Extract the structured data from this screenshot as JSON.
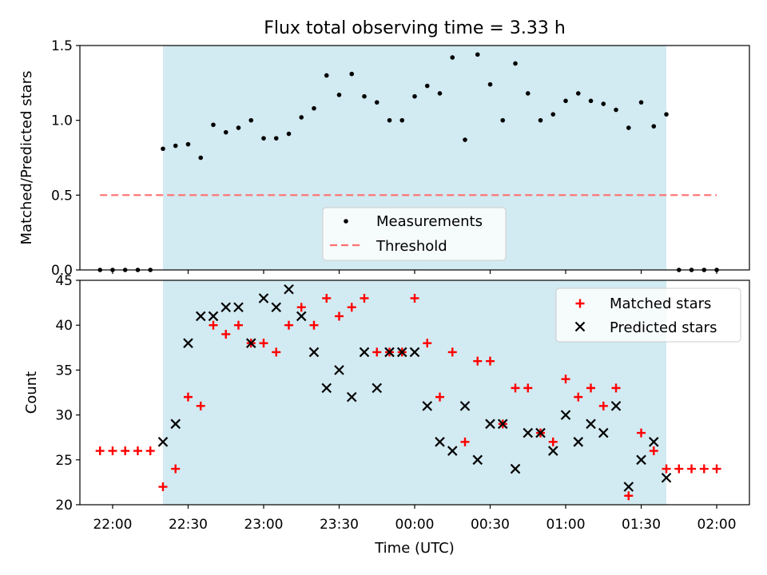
{
  "title": "Flux total observing time = 3.33 h",
  "colors": {
    "span": "#add8e6",
    "threshold": "#ff7070",
    "measure": "#000000",
    "matched": "#ff0000",
    "predicted": "#000000"
  },
  "chart_data": [
    {
      "type": "scatter",
      "title": "Flux total observing time = 3.33 h",
      "xlabel": "",
      "ylabel": "Matched/Predicted stars",
      "ylim": [
        0,
        1.5
      ],
      "yticks": [
        "0.0",
        "0.5",
        "1.0",
        "1.5"
      ],
      "xlim": [
        "21:47",
        "02:13"
      ],
      "observing_span": [
        "22:20",
        "01:40"
      ],
      "legend": {
        "placement": "lower-center",
        "entries": [
          "Measurements",
          "Threshold"
        ]
      },
      "threshold": {
        "name": "Threshold",
        "y": 0.5,
        "x_range": [
          "21:55",
          "02:00"
        ]
      },
      "series": [
        {
          "name": "Measurements",
          "x": [
            "21:55",
            "22:00",
            "22:05",
            "22:10",
            "22:15",
            "22:20",
            "22:25",
            "22:30",
            "22:35",
            "22:40",
            "22:45",
            "22:50",
            "22:55",
            "23:00",
            "23:05",
            "23:10",
            "23:15",
            "23:20",
            "23:25",
            "23:30",
            "23:35",
            "23:40",
            "23:45",
            "23:50",
            "23:55",
            "00:00",
            "00:05",
            "00:10",
            "00:15",
            "00:20",
            "00:25",
            "00:30",
            "00:35",
            "00:40",
            "00:45",
            "00:50",
            "00:55",
            "01:00",
            "01:05",
            "01:10",
            "01:15",
            "01:20",
            "01:25",
            "01:30",
            "01:35",
            "01:40",
            "01:45",
            "01:50",
            "01:55",
            "02:00"
          ],
          "y": [
            0,
            0,
            0,
            0,
            0,
            0.81,
            0.83,
            0.84,
            0.75,
            0.97,
            0.92,
            0.95,
            1.0,
            0.88,
            0.88,
            0.91,
            1.02,
            1.08,
            1.3,
            1.17,
            1.31,
            1.16,
            1.12,
            1.0,
            1.0,
            1.16,
            1.23,
            1.18,
            1.42,
            0.87,
            1.44,
            1.24,
            1.0,
            1.38,
            1.18,
            1.0,
            1.04,
            1.13,
            1.18,
            1.13,
            1.11,
            1.07,
            0.95,
            1.12,
            0.96,
            1.04,
            0,
            0,
            0,
            0
          ]
        }
      ]
    },
    {
      "type": "scatter",
      "xlabel": "Time (UTC)",
      "ylabel": "Count",
      "ylim": [
        20,
        45
      ],
      "yticks": [
        "20",
        "25",
        "30",
        "35",
        "40",
        "45"
      ],
      "xticks": [
        "22:00",
        "22:30",
        "23:00",
        "23:30",
        "00:00",
        "00:30",
        "01:00",
        "01:30",
        "02:00"
      ],
      "legend": {
        "placement": "top-right",
        "entries": [
          "Matched stars",
          "Predicted stars"
        ]
      },
      "series": [
        {
          "name": "Matched stars",
          "x": [
            "21:55",
            "22:00",
            "22:05",
            "22:10",
            "22:15",
            "22:20",
            "22:25",
            "22:30",
            "22:35",
            "22:40",
            "22:45",
            "22:50",
            "22:55",
            "23:00",
            "23:05",
            "23:10",
            "23:15",
            "23:20",
            "23:25",
            "23:30",
            "23:35",
            "23:40",
            "23:45",
            "23:50",
            "23:55",
            "00:00",
            "00:05",
            "00:10",
            "00:15",
            "00:20",
            "00:25",
            "00:30",
            "00:35",
            "00:40",
            "00:45",
            "00:50",
            "00:55",
            "01:00",
            "01:05",
            "01:10",
            "01:15",
            "01:20",
            "01:25",
            "01:30",
            "01:35",
            "01:40",
            "01:45",
            "01:50",
            "01:55",
            "02:00"
          ],
          "y": [
            26,
            26,
            26,
            26,
            26,
            22,
            24,
            32,
            31,
            40,
            39,
            40,
            38,
            38,
            37,
            40,
            42,
            40,
            43,
            41,
            42,
            43,
            37,
            37,
            37,
            43,
            38,
            32,
            37,
            27,
            36,
            36,
            29,
            33,
            33,
            28,
            27,
            34,
            32,
            33,
            31,
            33,
            21,
            28,
            26,
            24,
            24,
            24,
            24,
            24
          ]
        },
        {
          "name": "Predicted stars",
          "x": [
            "22:20",
            "22:25",
            "22:30",
            "22:35",
            "22:40",
            "22:45",
            "22:50",
            "22:55",
            "23:00",
            "23:05",
            "23:10",
            "23:15",
            "23:20",
            "23:25",
            "23:30",
            "23:35",
            "23:40",
            "23:45",
            "23:50",
            "23:55",
            "00:00",
            "00:05",
            "00:10",
            "00:15",
            "00:20",
            "00:25",
            "00:30",
            "00:35",
            "00:40",
            "00:45",
            "00:50",
            "00:55",
            "01:00",
            "01:05",
            "01:10",
            "01:15",
            "01:20",
            "01:25",
            "01:30",
            "01:35",
            "01:40"
          ],
          "y": [
            27,
            29,
            38,
            41,
            41,
            42,
            42,
            38,
            43,
            42,
            44,
            41,
            37,
            33,
            35,
            32,
            37,
            33,
            37,
            37,
            37,
            31,
            27,
            26,
            31,
            25,
            29,
            29,
            24,
            28,
            28,
            26,
            30,
            27,
            29,
            28,
            31,
            22,
            25,
            27,
            23
          ]
        }
      ]
    }
  ]
}
